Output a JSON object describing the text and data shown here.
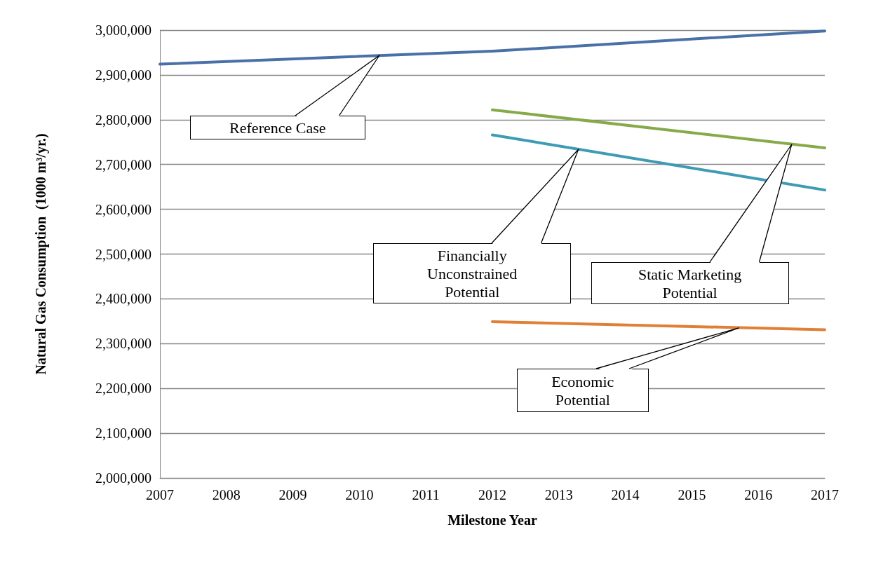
{
  "chart_data": {
    "type": "line",
    "xlabel": "Milestone Year",
    "ylabel": "Natural Gas Consumption  (1000 m³/yr.)",
    "xlim": [
      2007,
      2017
    ],
    "xticks": [
      2007,
      2008,
      2009,
      2010,
      2011,
      2012,
      2013,
      2014,
      2015,
      2016,
      2017
    ],
    "ylim": [
      2000000,
      3000000
    ],
    "yticks": [
      {
        "value": 2000000,
        "label": "2,000,000"
      },
      {
        "value": 2100000,
        "label": "2,100,000"
      },
      {
        "value": 2200000,
        "label": "2,200,000"
      },
      {
        "value": 2300000,
        "label": "2,300,000"
      },
      {
        "value": 2400000,
        "label": "2,400,000"
      },
      {
        "value": 2500000,
        "label": "2,500,000"
      },
      {
        "value": 2600000,
        "label": "2,600,000"
      },
      {
        "value": 2700000,
        "label": "2,700,000"
      },
      {
        "value": 2800000,
        "label": "2,800,000"
      },
      {
        "value": 2900000,
        "label": "2,900,000"
      },
      {
        "value": 3000000,
        "label": "3,000,000"
      }
    ],
    "grid": "y",
    "marker": "none",
    "line_style": "solid",
    "series": [
      {
        "color": "#4a70a8",
        "x": [
          2007,
          2012,
          2017
        ],
        "values": [
          2924000,
          2953000,
          2998000
        ]
      },
      {
        "color": "#86aa4a",
        "x": [
          2012,
          2017
        ],
        "values": [
          2822000,
          2737000
        ]
      },
      {
        "color": "#3e9bb4",
        "x": [
          2012,
          2017
        ],
        "values": [
          2766000,
          2643000
        ]
      },
      {
        "color": "#e07f36",
        "x": [
          2012,
          2017
        ],
        "values": [
          2349000,
          2331000
        ]
      }
    ],
    "annotations": [
      "Reference Case",
      "Financially Unconstrained Potential",
      "Static Marketing Potential",
      {
        "text": "Economic Potential",
        "x": 2015.7,
        "y": 2335000
      }
    ]
  }
}
